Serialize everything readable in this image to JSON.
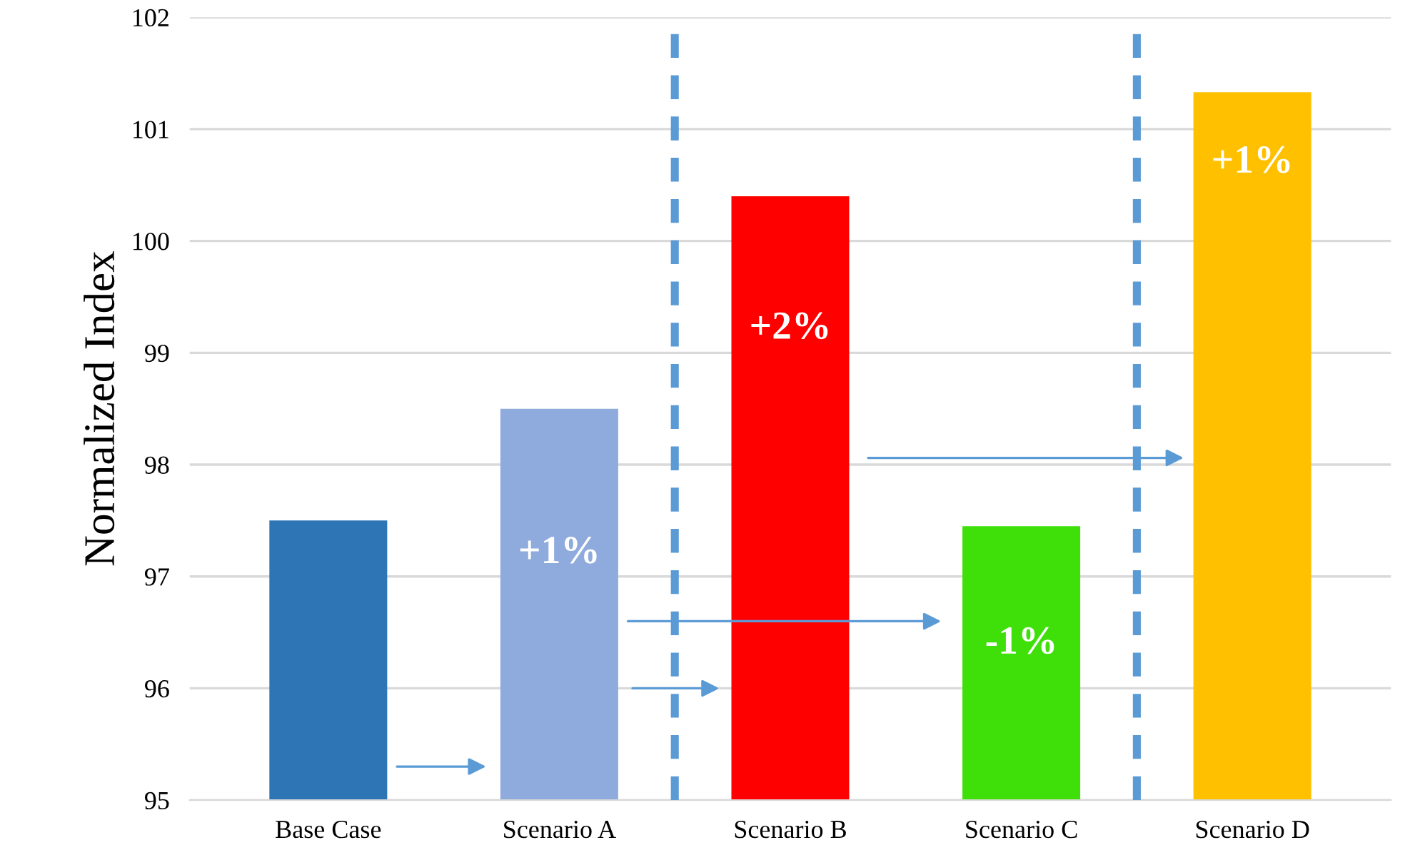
{
  "chart_data": {
    "type": "bar",
    "ylabel": "Normalized Index",
    "categories": [
      "Base Case",
      "Scenario A",
      "Scenario B",
      "Scenario C",
      "Scenario D"
    ],
    "values": [
      97.5,
      98.5,
      100.4,
      97.45,
      101.33
    ],
    "colors": [
      "#2e75b6",
      "#8faadc",
      "#ff0000",
      "#3fe00a",
      "#ffc000"
    ],
    "ylim": [
      95,
      102
    ],
    "yticks": [
      95,
      96,
      97,
      98,
      99,
      100,
      101,
      102
    ],
    "grid": "y",
    "annotations": [
      "+1%",
      "+2%",
      "-1%",
      "+1%"
    ]
  }
}
